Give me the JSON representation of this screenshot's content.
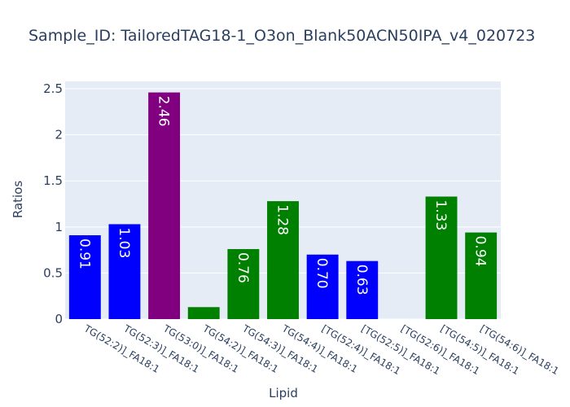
{
  "chart_data": {
    "type": "bar",
    "title": "Sample_ID: TailoredTAG18-1_O3on_Blank50ACN50IPA_v4_020723",
    "xlabel": "Lipid",
    "ylabel": "Ratios",
    "ylim": [
      0,
      2.58
    ],
    "yticks": [
      0,
      0.5,
      1,
      1.5,
      2,
      2.5
    ],
    "ytick_labels": [
      "0",
      "0.5",
      "1",
      "1.5",
      "2",
      "2.5"
    ],
    "grid": true,
    "categories": [
      "TG(52:2)]_FA18:1",
      "TG(52:3)]_FA18:1",
      "TG(53:0)]_FA18:1",
      "TG(54:2)]_FA18:1",
      "TG(54:3)]_FA18:1",
      "TG(54:4)]_FA18:1",
      "[TG(52:4)]_FA18:1",
      "[TG(52:5)]_FA18:1",
      "[TG(52:6)]_FA18:1",
      "[TG(54:5)]_FA18:1",
      "[TG(54:6)]_FA18:1"
    ],
    "values": [
      0.91,
      1.03,
      2.46,
      0.13,
      0.76,
      1.28,
      0.7,
      0.63,
      0,
      1.33,
      0.94
    ],
    "data_labels": [
      "0.91",
      "1.03",
      "2.46",
      "",
      "0.76",
      "1.28",
      "0.70",
      "0.63",
      "",
      "1.33",
      "0.94"
    ],
    "colors": [
      "#0000ff",
      "#0000ff",
      "#800080",
      "#008000",
      "#008000",
      "#008000",
      "#0000ff",
      "#0000ff",
      "#008000",
      "#008000",
      "#008000"
    ],
    "plot_background": "#e5ecf6"
  }
}
